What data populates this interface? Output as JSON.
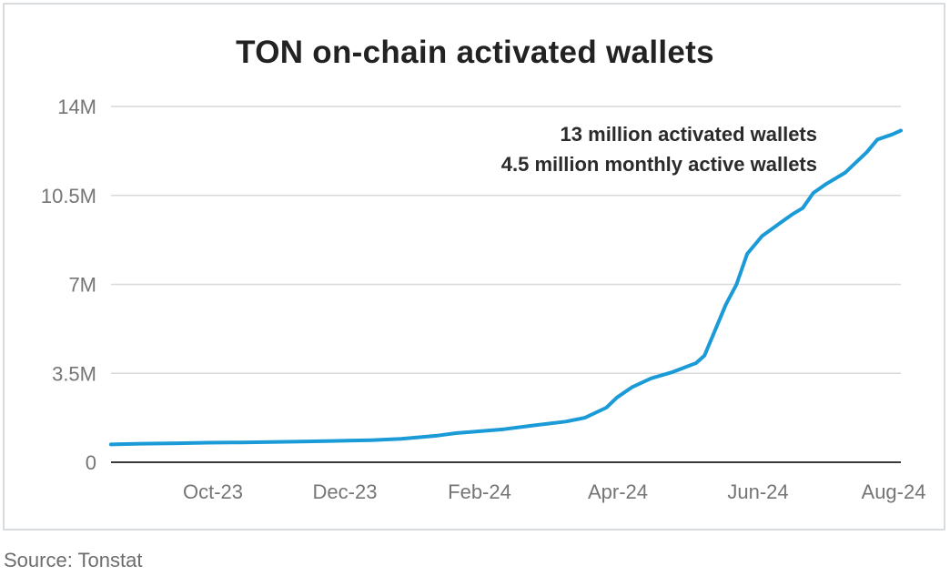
{
  "chart_data": {
    "type": "line",
    "title": "TON on-chain activated wallets",
    "xlabel": "",
    "ylabel": "",
    "ylim": [
      0,
      14
    ],
    "y_ticks": [
      "0",
      "3.5M",
      "7M",
      "10.5M",
      "14M"
    ],
    "x_ticks": [
      "Oct-23",
      "Dec-23",
      "Feb-24",
      "Apr-24",
      "Jun-24",
      "Aug-24"
    ],
    "grid": true,
    "line_color": "#1a9ad6",
    "annotations": [
      "13 million activated wallets",
      "4.5 million monthly active wallets"
    ],
    "series": [
      {
        "x": [
          "2023-08-01",
          "2023-08-15",
          "2023-09-01",
          "2023-09-15",
          "2023-10-01",
          "2023-10-15",
          "2023-11-01",
          "2023-11-15",
          "2023-12-01",
          "2023-12-15",
          "2024-01-01",
          "2024-01-10",
          "2024-01-15",
          "2024-02-01",
          "2024-02-15",
          "2024-03-01",
          "2024-03-10",
          "2024-03-20",
          "2024-03-25",
          "2024-04-01",
          "2024-04-10",
          "2024-04-20",
          "2024-05-01",
          "2024-05-05",
          "2024-05-10",
          "2024-05-15",
          "2024-05-20",
          "2024-05-25",
          "2024-06-01",
          "2024-06-10",
          "2024-06-15",
          "2024-06-20",
          "2024-06-25",
          "2024-07-01",
          "2024-07-10",
          "2024-07-15",
          "2024-07-20",
          "2024-07-25",
          "2024-08-01",
          "2024-08-05"
        ],
        "values": [
          0.7,
          0.73,
          0.75,
          0.77,
          0.78,
          0.8,
          0.82,
          0.84,
          0.87,
          0.92,
          1.05,
          1.15,
          1.18,
          1.3,
          1.45,
          1.6,
          1.75,
          2.15,
          2.55,
          2.95,
          3.3,
          3.55,
          3.9,
          4.2,
          5.2,
          6.2,
          7.0,
          8.2,
          8.9,
          9.45,
          9.75,
          10.0,
          10.6,
          10.95,
          11.4,
          11.8,
          12.2,
          12.7,
          12.9,
          13.05
        ]
      }
    ]
  },
  "source": "Source: Tonstat"
}
